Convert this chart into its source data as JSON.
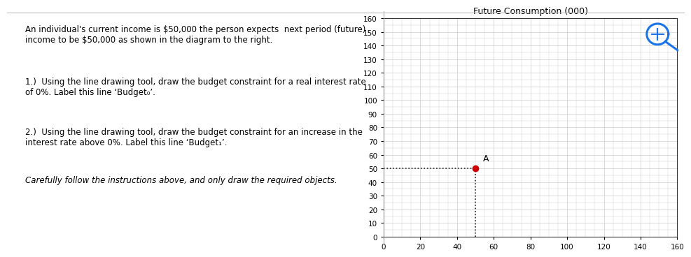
{
  "text_panel": {
    "line1": "An individual's current income is $50,000 the person expects  next period (future)",
    "line2": "income to be $50,000 as shown in the diagram to the right.",
    "item1": "1.)  Using the line drawing tool, draw the budget constraint for a real interest rate\nof 0%. Label this line ‘Budget₀’.",
    "item2": "2.)  Using the line drawing tool, draw the budget constraint for an increase in the\ninterest rate above 0%. Label this line ‘Budget₁’.",
    "note": "Carefully follow the instructions above, and only draw the required objects."
  },
  "chart": {
    "title": "Future Consumption (000)",
    "xlim": [
      0,
      160
    ],
    "ylim": [
      0,
      160
    ],
    "xticks": [
      0,
      20,
      40,
      60,
      80,
      100,
      120,
      140,
      160
    ],
    "yticks": [
      0,
      10,
      20,
      30,
      40,
      50,
      60,
      70,
      80,
      90,
      100,
      110,
      120,
      130,
      140,
      150,
      160
    ],
    "point_x": 50,
    "point_y": 50,
    "point_color": "#cc0000",
    "point_label": "A",
    "dotted_line_color": "#222222",
    "grid_color": "#cccccc",
    "bg_color": "#ffffff",
    "zoom_icon_color": "#1a73e8"
  }
}
